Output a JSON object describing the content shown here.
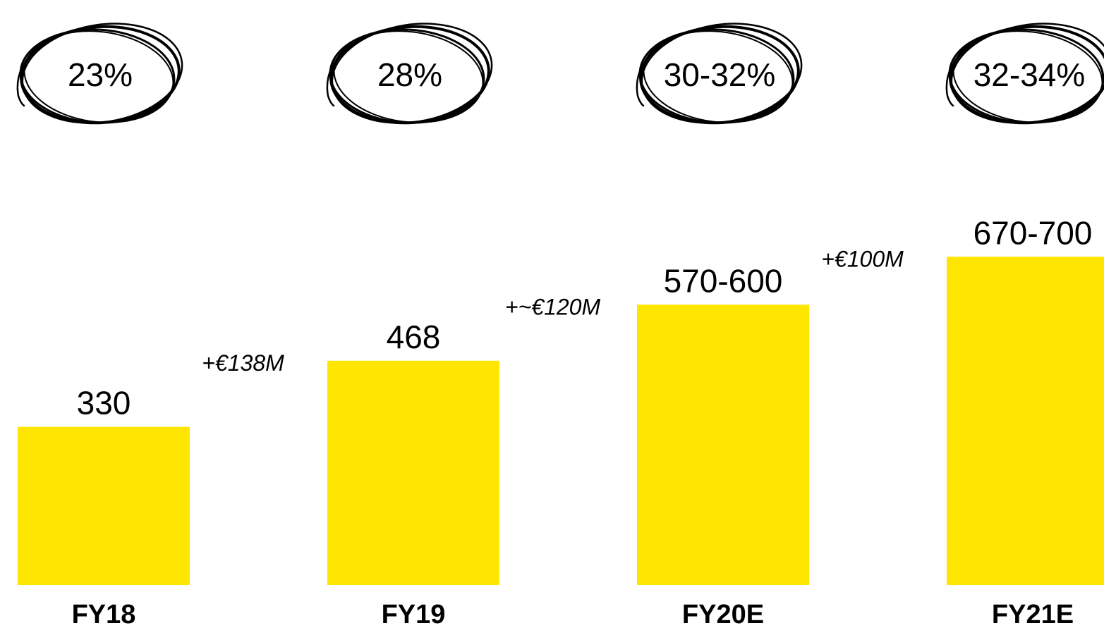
{
  "chart_data": {
    "type": "bar",
    "categories": [
      "FY18",
      "FY19",
      "FY20E",
      "FY21E"
    ],
    "values": [
      330,
      468,
      585,
      685
    ],
    "value_labels": [
      "330",
      "468",
      "570-600",
      "670-700"
    ],
    "margin_labels": [
      "23%",
      "28%",
      "30-32%",
      "32-34%"
    ],
    "deltas": [
      "+€138M",
      "+~€120M",
      "+€100M"
    ],
    "title": "",
    "xlabel": "",
    "ylabel": "",
    "ylim": [
      0,
      720
    ],
    "grid": false,
    "bar_color": "#FFE600",
    "circle_color": "#000000"
  }
}
